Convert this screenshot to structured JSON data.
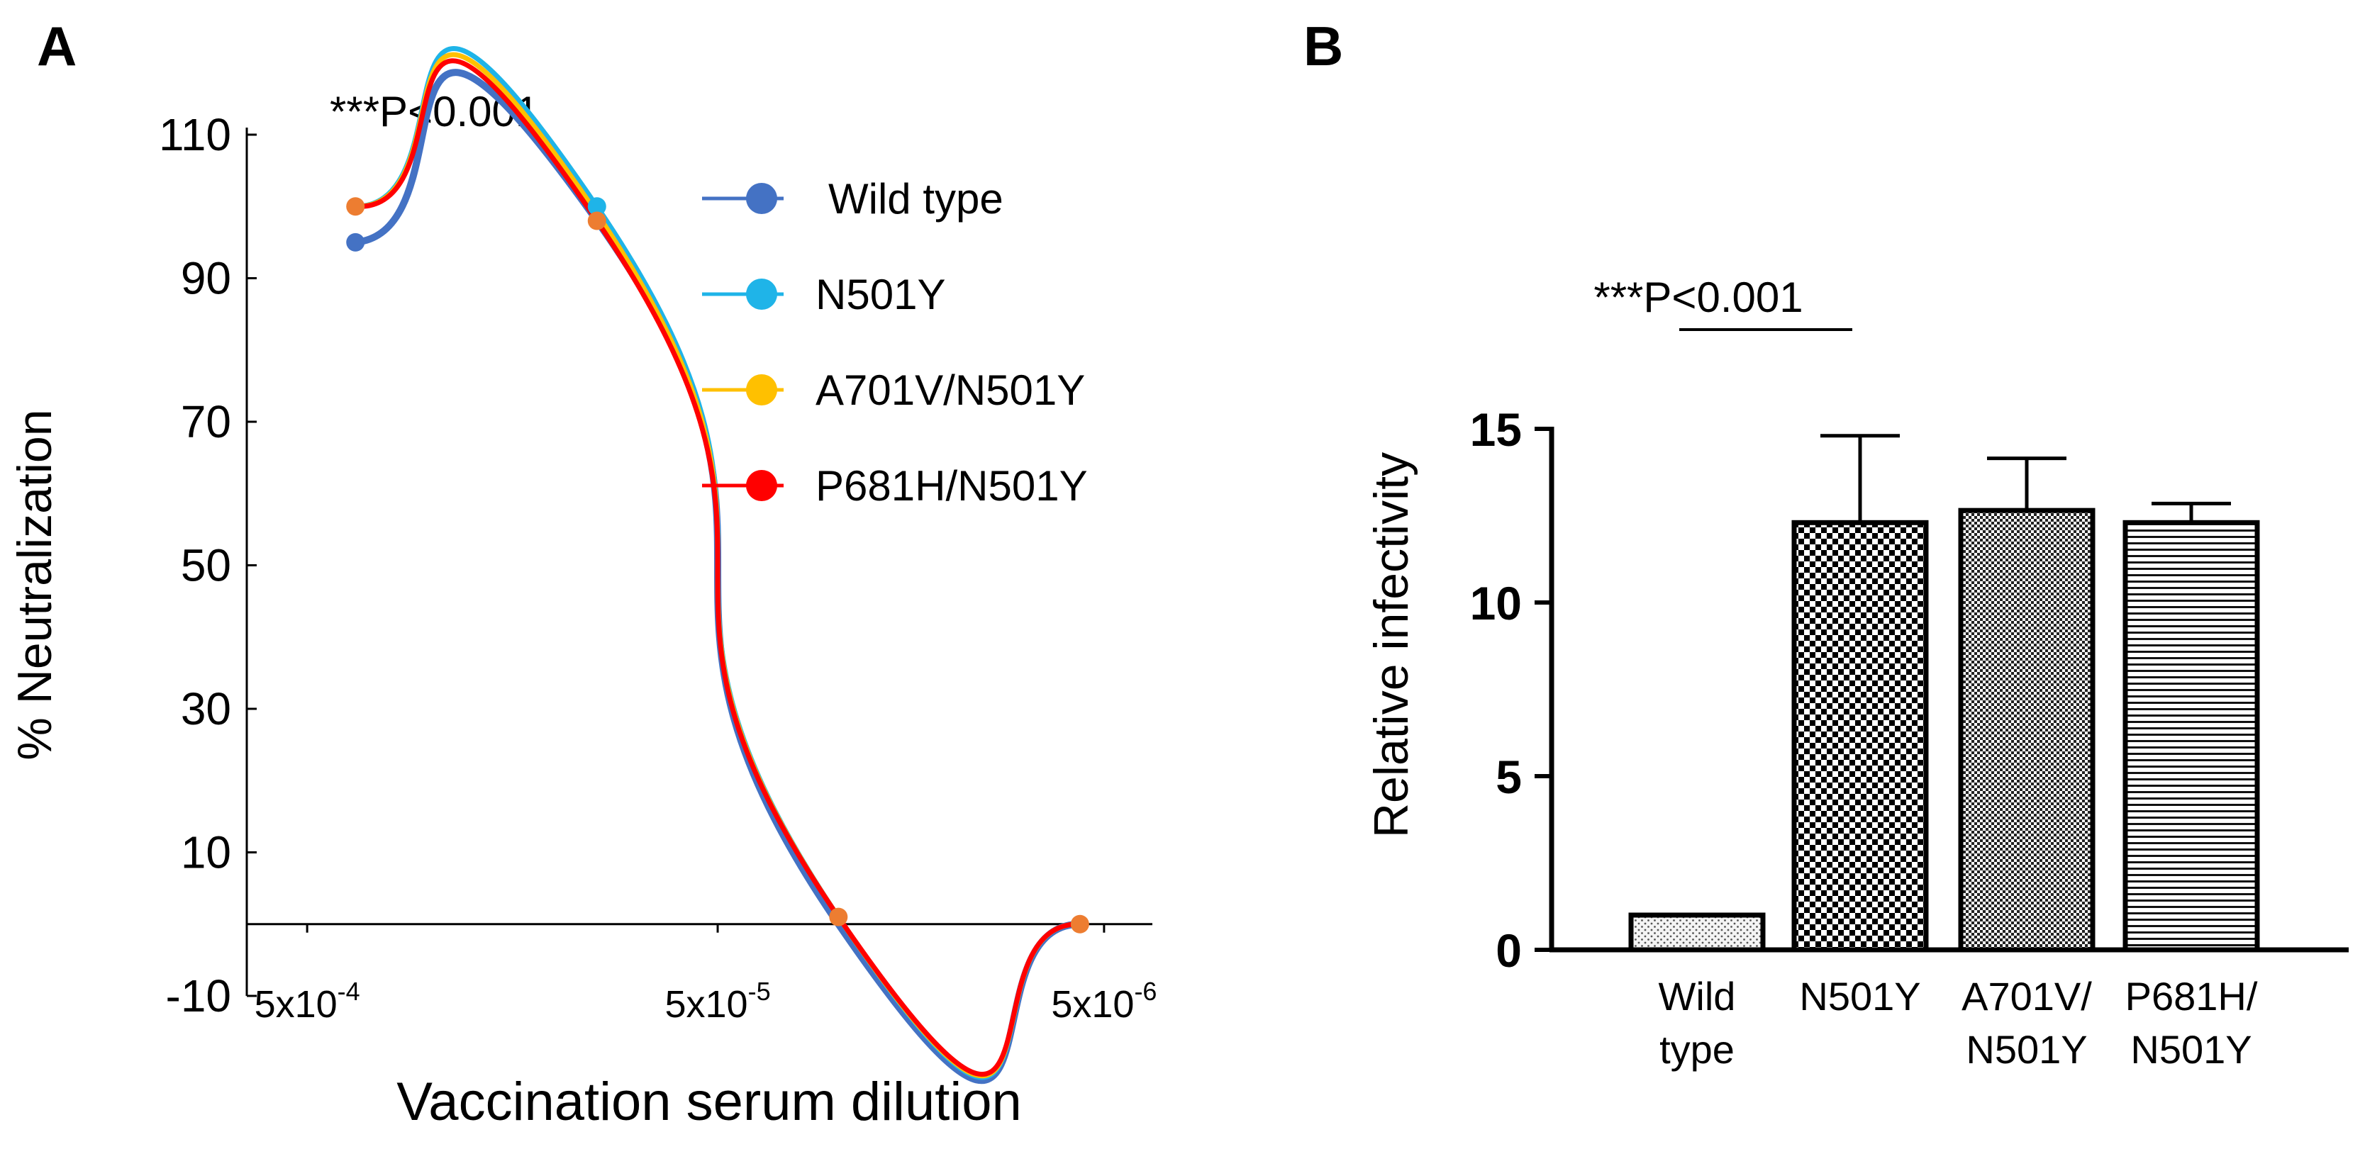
{
  "chart_data": [
    {
      "panel_label": "A",
      "type": "line",
      "annotation": "***P<0.001",
      "xlabel": "Vaccination serum dilution",
      "ylabel": "% Neutralization",
      "x": [
        1,
        2,
        3,
        4
      ],
      "x_tick_labels": [
        {
          "at": 0.8,
          "base": "5x10",
          "exp": "-4"
        },
        {
          "at": 2.5,
          "base": "5x10",
          "exp": "-5"
        },
        {
          "at": 4.1,
          "base": "5x10",
          "exp": "-6"
        }
      ],
      "y_ticks": [
        110,
        90,
        70,
        50,
        30,
        10,
        -10
      ],
      "ylim": [
        -10,
        110
      ],
      "xlim": [
        0.55,
        4.3
      ],
      "legend_position": "top-right",
      "series": [
        {
          "name": "Wild type",
          "color": "#4472C4",
          "values": [
            95,
            98,
            0,
            0
          ]
        },
        {
          "name": "N501Y",
          "color": "#1FB4E8",
          "values": [
            100,
            100,
            1,
            0
          ]
        },
        {
          "name": "A701V/N501Y",
          "color": "#FFC000",
          "values": [
            100,
            99,
            1,
            0
          ]
        },
        {
          "name": "P681H/N501Y",
          "color": "#FF0000",
          "values": [
            100,
            98,
            1,
            0
          ]
        }
      ],
      "visible_markers_color": "#ED7D31"
    },
    {
      "panel_label": "B",
      "type": "bar",
      "annotation": "***P<0.001",
      "ylabel": "Relative infectivity",
      "y_ticks": [
        0,
        5,
        10,
        15
      ],
      "ylim": [
        0,
        15
      ],
      "categories": [
        {
          "line1": "Wild",
          "line2": "type"
        },
        {
          "line1": "N501Y",
          "line2": ""
        },
        {
          "line1": "A701V/",
          "line2": "N501Y"
        },
        {
          "line1": "P681H/",
          "line2": "N501Y"
        }
      ],
      "values": [
        1.0,
        12.3,
        12.65,
        12.3
      ],
      "error_upper": [
        0,
        2.5,
        1.5,
        0.55
      ],
      "patterns": [
        "dots",
        "checker",
        "fine-checker",
        "hlines"
      ]
    }
  ]
}
